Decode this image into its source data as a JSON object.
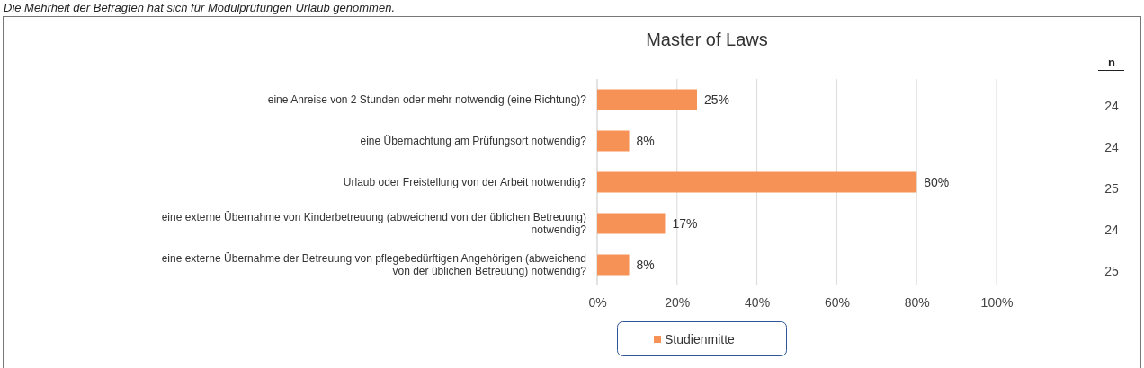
{
  "chart_data": {
    "type": "bar",
    "orientation": "horizontal",
    "title": "Master of Laws",
    "categories": [
      "eine Anreise von 2 Stunden oder mehr notwendig (eine Richtung)?",
      "eine Übernachtung am Prüfungsort notwendig?",
      "Urlaub oder Freistellung von der Arbeit notwendig?",
      "eine externe Übernahme von Kinderbetreuung (abweichend von der üblichen Betreuung) notwendig?",
      "eine externe Übernahme der Betreuung von pflegebedürftigen Angehörigen (abweichend von der üblichen Betreuung) notwendig?"
    ],
    "series": [
      {
        "name": "Studienmitte",
        "color": "#f79256",
        "values": [
          25,
          8,
          80,
          17,
          8
        ]
      }
    ],
    "xlim": [
      0,
      100
    ],
    "xticks": [
      {
        "value": 0,
        "label": "0%"
      },
      {
        "value": 20,
        "label": "20%"
      },
      {
        "value": 40,
        "label": "40%"
      },
      {
        "value": 60,
        "label": "60%"
      },
      {
        "value": 80,
        "label": "80%"
      },
      {
        "value": 100,
        "label": "100%"
      }
    ],
    "value_labels": [
      "25%",
      "8%",
      "80%",
      "17%",
      "8%"
    ],
    "grid": "x",
    "legend": "bottom",
    "annotations": [
      "Die Mehrheit der Befragten hat sich für Modulprüfungen Urlaub genommen.",
      "n",
      "24",
      "24",
      "25",
      "24",
      "25"
    ]
  }
}
